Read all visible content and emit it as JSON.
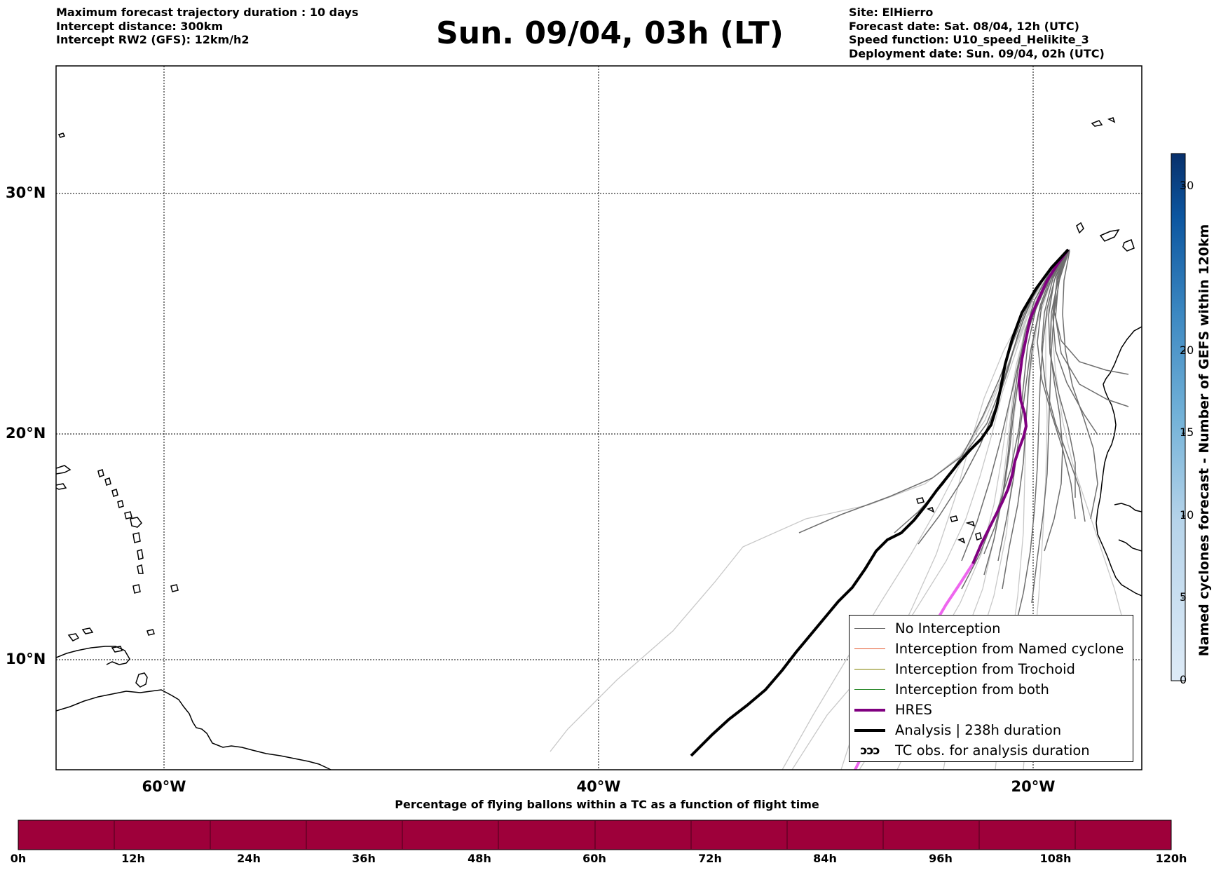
{
  "header": {
    "title": "Sun. 09/04, 03h (LT)",
    "left_lines": [
      "Maximum forecast trajectory duration : 10 days",
      "Intercept distance: 300km",
      "Intercept RW2 (GFS):  12km/h2"
    ],
    "right_lines": [
      "Site: ElHierro",
      "Forecast date: Sat. 08/04, 12h (UTC)",
      "Speed function: U10_speed_Helikite_3",
      "Deployment date: Sun. 09/04, 02h (UTC)"
    ]
  },
  "map": {
    "lat_labels": [
      "30°N",
      "20°N",
      "10°N"
    ],
    "lon_labels": [
      "60°W",
      "40°W",
      "20°W"
    ],
    "grid": true,
    "colors": {
      "no_interception": "#6e6e6e",
      "named_cyclone": "#e4572e",
      "trochoid": "#808000",
      "both": "#2e8b2e",
      "hres": "#800080",
      "hres_light": "#ee66ee",
      "analysis": "#000000",
      "faint_member": "#c8c8c8"
    }
  },
  "legend": {
    "items": [
      {
        "label": "No Interception",
        "color": "#6e6e6e",
        "kind": "line",
        "width": 1.5
      },
      {
        "label": "Interception from Named cyclone",
        "color": "#e4572e",
        "kind": "line",
        "width": 1.5
      },
      {
        "label": "Interception from Trochoid",
        "color": "#808000",
        "kind": "line",
        "width": 1.5
      },
      {
        "label": "Interception from both",
        "color": "#2e8b2e",
        "kind": "line",
        "width": 1.5
      },
      {
        "label": "HRES",
        "color": "#800080",
        "kind": "line",
        "width": 4
      },
      {
        "label": "Analysis | 238h duration",
        "color": "#000000",
        "kind": "line",
        "width": 4
      },
      {
        "label": "TC obs. for analysis duration",
        "color": "#000000",
        "kind": "symbol",
        "symbol": "ↄↄↄ"
      }
    ]
  },
  "colorbar": {
    "title": "Named cyclones forecast - Number of GEFS within 120km",
    "ticks": [
      "0",
      "5",
      "10",
      "15",
      "20",
      "30"
    ],
    "range": [
      0,
      32
    ],
    "colors": [
      "#dae8f5",
      "#c6dbef",
      "#9ecae1",
      "#6baed6",
      "#4292c6",
      "#2171b5",
      "#08519c",
      "#08306b"
    ]
  },
  "time_bar": {
    "title": "Percentage of flying ballons within a TC as a function of flight time",
    "labels": [
      "0h",
      "12h",
      "24h",
      "36h",
      "48h",
      "60h",
      "72h",
      "84h",
      "96h",
      "108h",
      "120h"
    ],
    "fill_color": "#9e003a"
  }
}
